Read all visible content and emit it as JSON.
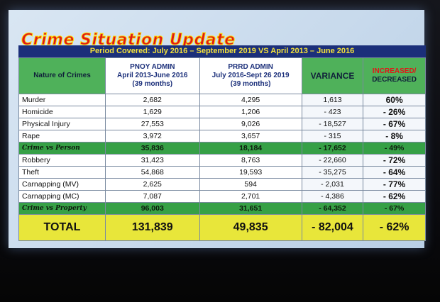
{
  "slide": {
    "title": "Crime Situation Update",
    "subtitle": "Period Covered: July 2016 – September 2019  VS  April 2013 – June 2016",
    "table": {
      "header": [
        [
          "Nature of Crimes"
        ],
        [
          "PNOY ADMIN",
          "April 2013-June 2016",
          "(39 months)"
        ],
        [
          "PRRD ADMIN",
          "July 2016-Sept 26 2019",
          "(39 months)"
        ],
        [
          "VARIANCE"
        ],
        [
          "INCREASED/",
          "DECREASED"
        ]
      ],
      "groups": [
        {
          "rows": [
            [
              "Murder",
              "2,682",
              "4,295",
              "1,613",
              "60%"
            ],
            [
              "Homicide",
              "1,629",
              "1,206",
              "- 423",
              "- 26%"
            ],
            [
              "Physical Injury",
              "27,553",
              "9,026",
              "- 18,527",
              "- 67%"
            ],
            [
              "Rape",
              "3,972",
              "3,657",
              "- 315",
              "- 8%"
            ]
          ],
          "subtotal": [
            "Crime vs Person",
            "35,836",
            "18,184",
            "- 17,652",
            "- 49%"
          ]
        },
        {
          "rows": [
            [
              "Robbery",
              "31,423",
              "8,763",
              "- 22,660",
              "- 72%"
            ],
            [
              "Theft",
              "54,868",
              "19,593",
              "- 35,275",
              "- 64%"
            ],
            [
              "Carnapping (MV)",
              "2,625",
              "594",
              "- 2,031",
              "- 77%"
            ],
            [
              "Carnapping (MC)",
              "7,087",
              "2,701",
              "- 4,386",
              "- 62%"
            ]
          ],
          "subtotal": [
            "Crime vs Property",
            "96,003",
            "31,651",
            "- 64,352",
            "- 67%"
          ]
        }
      ],
      "total": [
        "TOTAL",
        "131,839",
        "49,835",
        "- 82,004",
        "- 62%"
      ]
    }
  }
}
